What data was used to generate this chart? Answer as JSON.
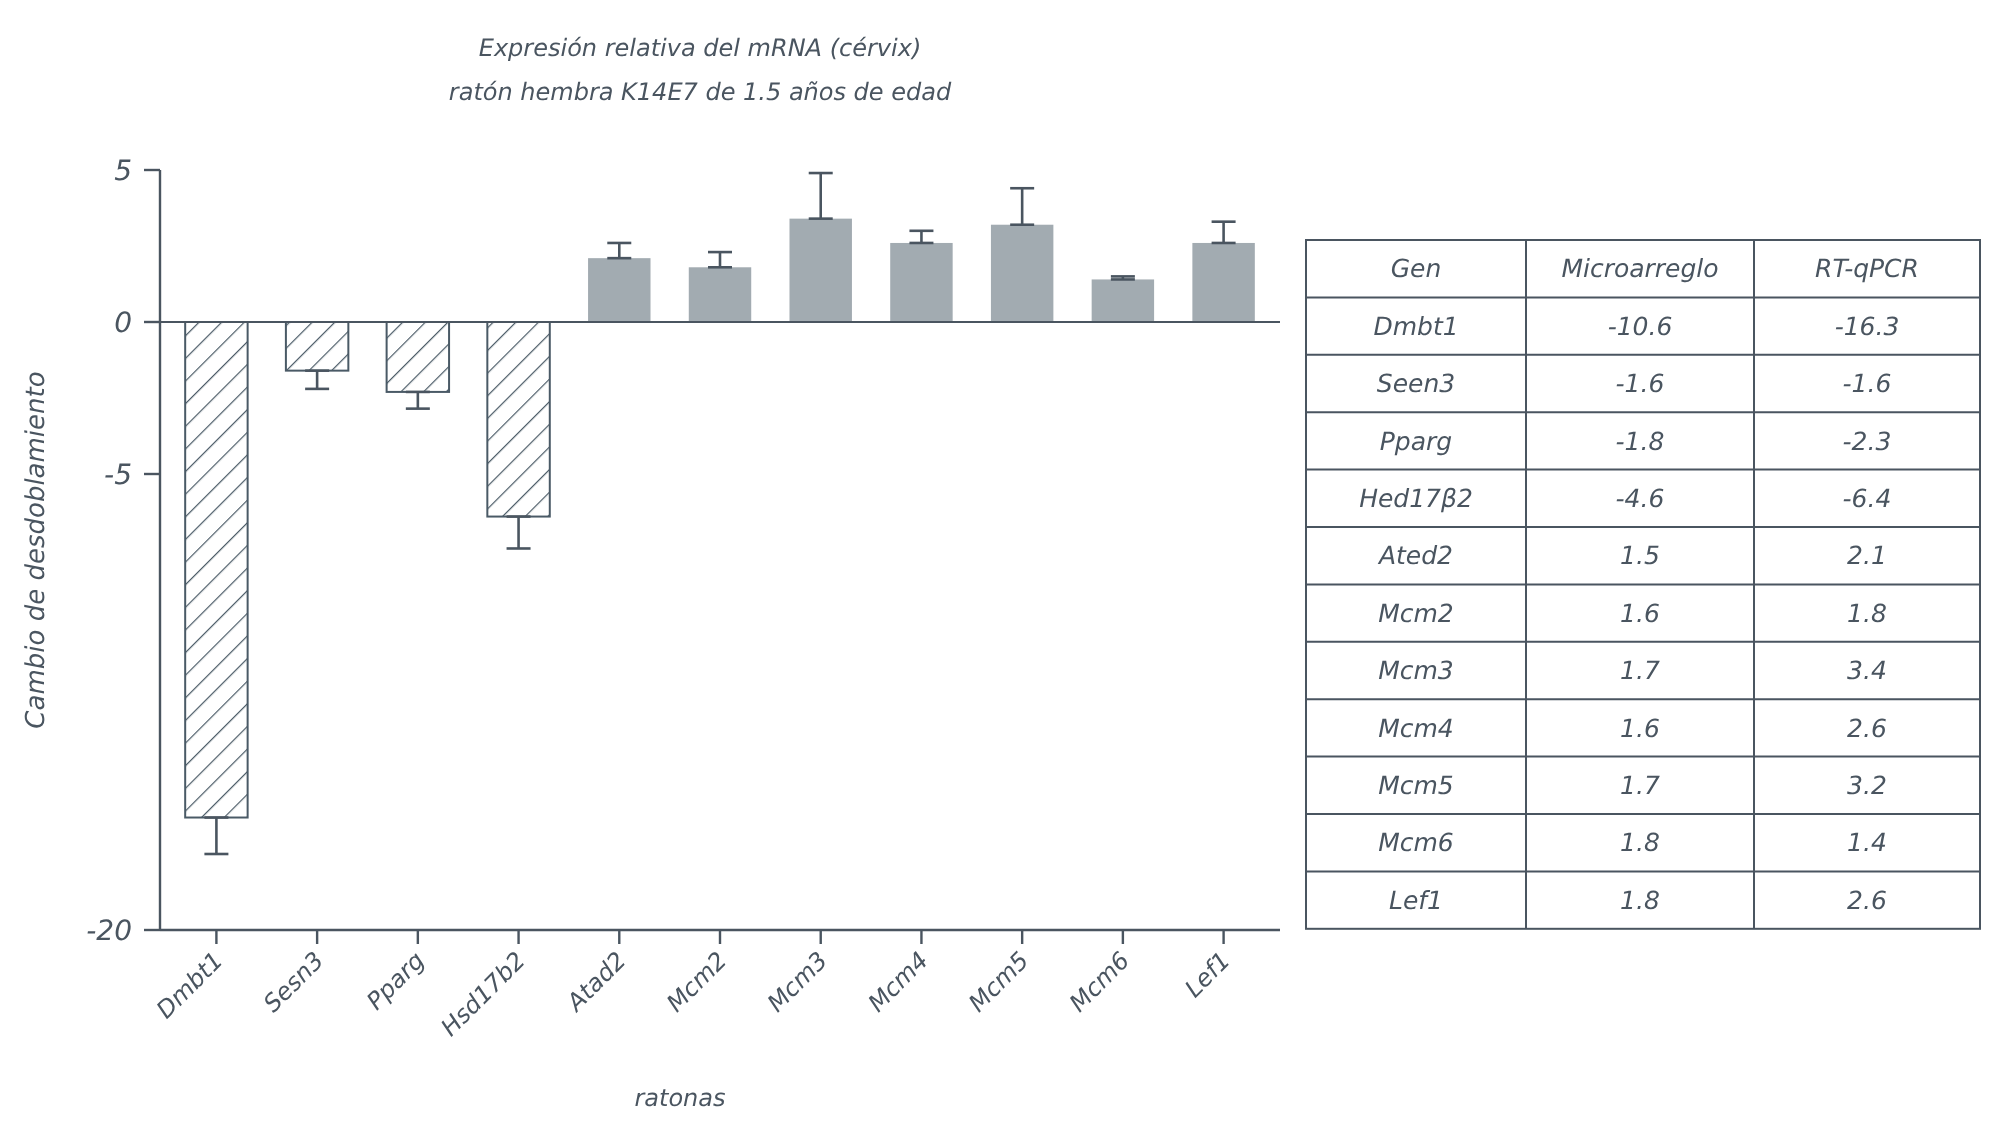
{
  "chart_data": [
    {
      "type": "bar",
      "title": "Expresión relativa del mRNA (cérvix)",
      "subtitle": "ratón hembra K14E7 de 1.5 años de edad",
      "xlabel": "ratonas",
      "ylabel": "Cambio de desdoblamiento",
      "categories": [
        "Dmbt1",
        "Sesn3",
        "Pparg",
        "Hsd17b2",
        "Atad2",
        "Mcm2",
        "Mcm3",
        "Mcm4",
        "Mcm5",
        "Mcm6",
        "Lef1"
      ],
      "values": [
        -16.3,
        -1.6,
        -2.3,
        -6.4,
        2.1,
        1.8,
        3.4,
        2.6,
        3.2,
        1.4,
        2.6
      ],
      "colors": [
        "#4a5a66",
        "#4a5a66",
        "#4a5a66",
        "#4a5a66",
        "#a2abb1",
        "#a2abb1",
        "#a2abb1",
        "#a2abb1",
        "#a2abb1",
        "#a2abb1",
        "#a2abb1"
      ],
      "errors": [
        [
          -17.5,
          -16.3
        ],
        [
          -2.2,
          -1.6
        ],
        [
          -2.85,
          -2.3
        ],
        [
          -7.45,
          -6.4
        ],
        [
          2.1,
          2.6
        ],
        [
          1.8,
          2.3
        ],
        [
          3.4,
          4.9
        ],
        [
          2.6,
          3.0
        ],
        [
          3.2,
          4.4
        ],
        [
          1.4,
          1.5
        ],
        [
          2.6,
          3.3
        ]
      ],
      "ylim": [
        -20,
        5
      ],
      "yticks": [
        5,
        0,
        -5,
        -20
      ],
      "grid": false,
      "ref_lines": [
        {
          "axis": "y",
          "value": 0
        }
      ]
    },
    {
      "type": "other",
      "xlabel": "Gen",
      "data_labels": true,
      "categories": [
        "Dmbt1",
        "Seen3",
        "Pparg",
        "Hed17β2",
        "Ated2",
        "Mcm2",
        "Mcm3",
        "Mcm4",
        "Mcm5",
        "Mcm6",
        "Lef1"
      ],
      "series": [
        {
          "name": "Microarreglo",
          "values": [
            -10.6,
            -1.6,
            -1.8,
            -4.6,
            1.5,
            1.6,
            1.7,
            1.6,
            1.7,
            1.8,
            1.8
          ]
        },
        {
          "name": "RT-qPCR",
          "values": [
            -16.3,
            -1.6,
            -2.3,
            -6.4,
            2.1,
            1.8,
            3.4,
            2.6,
            3.2,
            1.4,
            2.6
          ]
        }
      ]
    }
  ]
}
